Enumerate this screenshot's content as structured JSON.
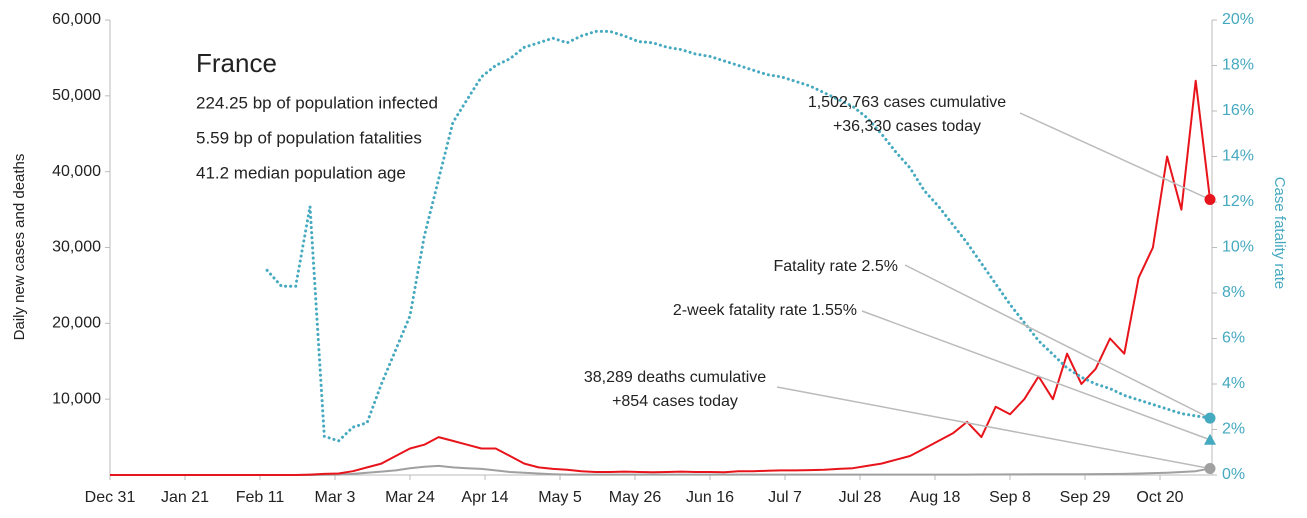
{
  "chart_data": {
    "type": "line",
    "info": {
      "title": "France",
      "lines": [
        "224.25 bp of population infected",
        "5.59 bp of population fatalities",
        "41.2 median population age"
      ]
    },
    "ylabel": "Daily new cases and deaths",
    "y2label": "Case fatality rate",
    "x": [
      0,
      4,
      8,
      12,
      16,
      20,
      24,
      28,
      32,
      36,
      40,
      44,
      48,
      52,
      56,
      60,
      64,
      68,
      72,
      76,
      80,
      84,
      88,
      92,
      96,
      100,
      104,
      108,
      112,
      116,
      120,
      124,
      128,
      132,
      136,
      140,
      144,
      148,
      152,
      156,
      160,
      164,
      168,
      172,
      176,
      180,
      184,
      188,
      192,
      196,
      200,
      204,
      208,
      212,
      216,
      220,
      224,
      228,
      232,
      236,
      240,
      244,
      248,
      252,
      256,
      260,
      264,
      268,
      272,
      276,
      280,
      284,
      288,
      292,
      296,
      300,
      304,
      308
    ],
    "xlim": [
      0,
      308
    ],
    "xticks": [
      {
        "value": 0,
        "label": "Dec 31"
      },
      {
        "value": 21,
        "label": "Jan 21"
      },
      {
        "value": 42,
        "label": "Feb 11"
      },
      {
        "value": 63,
        "label": "Mar 3"
      },
      {
        "value": 84,
        "label": "Mar 24"
      },
      {
        "value": 105,
        "label": "Apr 14"
      },
      {
        "value": 126,
        "label": "May 5"
      },
      {
        "value": 147,
        "label": "May 26"
      },
      {
        "value": 168,
        "label": "Jun 16"
      },
      {
        "value": 189,
        "label": "Jul 7"
      },
      {
        "value": 210,
        "label": "Jul 28"
      },
      {
        "value": 231,
        "label": "Aug 18"
      },
      {
        "value": 252,
        "label": "Sep 8"
      },
      {
        "value": 273,
        "label": "Sep 29"
      },
      {
        "value": 294,
        "label": "Oct 20"
      }
    ],
    "ylim": [
      0,
      60000
    ],
    "yticks": [
      {
        "value": 10000,
        "label": "10,000"
      },
      {
        "value": 20000,
        "label": "20,000"
      },
      {
        "value": 30000,
        "label": "30,000"
      },
      {
        "value": 40000,
        "label": "40,000"
      },
      {
        "value": 50000,
        "label": "50,000"
      },
      {
        "value": 60000,
        "label": "60,000"
      }
    ],
    "y2lim": [
      0,
      20
    ],
    "y2ticks": [
      {
        "value": 0,
        "label": "0%"
      },
      {
        "value": 2,
        "label": "2%"
      },
      {
        "value": 4,
        "label": "4%"
      },
      {
        "value": 6,
        "label": "6%"
      },
      {
        "value": 8,
        "label": "8%"
      },
      {
        "value": 10,
        "label": "10%"
      },
      {
        "value": 12,
        "label": "12%"
      },
      {
        "value": 14,
        "label": "14%"
      },
      {
        "value": 16,
        "label": "16%"
      },
      {
        "value": 18,
        "label": "18%"
      },
      {
        "value": 20,
        "label": "20%"
      }
    ],
    "series": [
      {
        "color": "#e8141b",
        "style": "solid",
        "values": [
          0,
          0,
          0,
          0,
          0,
          0,
          0,
          0,
          0,
          0,
          0,
          0,
          0,
          0,
          50,
          150,
          200,
          500,
          1000,
          1500,
          2500,
          3500,
          4000,
          5000,
          4500,
          4000,
          3500,
          3500,
          2500,
          1500,
          1000,
          800,
          700,
          500,
          400,
          400,
          450,
          400,
          350,
          400,
          450,
          400,
          400,
          350,
          500,
          500,
          550,
          600,
          600,
          650,
          700,
          800,
          900,
          1200,
          1500,
          2000,
          2500,
          3500,
          4500,
          5500,
          7000,
          5000,
          9000,
          8000,
          10000,
          13000,
          10000,
          16000,
          12000,
          14000,
          18000,
          16000,
          26000,
          30000,
          42000,
          35000,
          52000,
          36330
        ]
      },
      {
        "color": "#a0a0a0",
        "style": "solid",
        "values": [
          0,
          0,
          0,
          0,
          0,
          0,
          0,
          0,
          0,
          0,
          0,
          0,
          0,
          0,
          0,
          20,
          50,
          150,
          300,
          450,
          600,
          900,
          1100,
          1200,
          1000,
          900,
          800,
          600,
          400,
          300,
          200,
          100,
          50,
          50,
          50,
          50,
          50,
          50,
          50,
          50,
          50,
          50,
          50,
          50,
          50,
          50,
          50,
          50,
          50,
          50,
          50,
          50,
          50,
          50,
          50,
          50,
          50,
          50,
          50,
          50,
          50,
          60,
          70,
          80,
          80,
          90,
          100,
          100,
          100,
          120,
          130,
          150,
          200,
          250,
          300,
          400,
          500,
          854
        ]
      },
      {
        "color": "#45a9bf",
        "style": "dotted",
        "axis": "y2",
        "values": [
          null,
          null,
          null,
          null,
          null,
          null,
          null,
          null,
          null,
          null,
          null,
          9,
          8.3,
          8.3,
          11.8,
          1.7,
          1.5,
          2.1,
          2.3,
          4,
          5.5,
          7,
          10.5,
          13,
          15.5,
          16.5,
          17.5,
          18,
          18.3,
          18.8,
          19,
          19.2,
          19,
          19.3,
          19.5,
          19.5,
          19.3,
          19.05,
          19,
          18.8,
          18.7,
          18.5,
          18.4,
          18.2,
          18,
          17.8,
          17.6,
          17.5,
          17.3,
          17.1,
          16.8,
          16.5,
          16.2,
          15.7,
          15,
          14.2,
          13.5,
          12.5,
          11.8,
          11.0,
          10.2,
          9.3,
          8.4,
          7.5,
          6.7,
          5.9,
          5.3,
          4.7,
          4.3,
          4.0,
          3.8,
          3.5,
          3.3,
          3.1,
          2.9,
          2.7,
          2.6,
          2.5
        ]
      }
    ],
    "annotations": [
      {
        "lines": [
          "1,502,763 cases cumulative",
          "+36,330 cases today"
        ],
        "value": 36330,
        "axis": "y",
        "marker": "circle",
        "color": "#e8141b"
      },
      {
        "lines": [
          "Fatality rate 2.5%"
        ],
        "value": 2.5,
        "axis": "y2",
        "marker": "circle",
        "color": "#45a9bf"
      },
      {
        "lines": [
          "2-week fatality rate 1.55%"
        ],
        "value": 1.55,
        "axis": "y2",
        "marker": "triangle",
        "color": "#45a9bf"
      },
      {
        "lines": [
          "38,289 deaths cumulative",
          "+854 cases today"
        ],
        "value": 854,
        "axis": "y",
        "marker": "circle",
        "color": "#a0a0a0"
      }
    ]
  }
}
